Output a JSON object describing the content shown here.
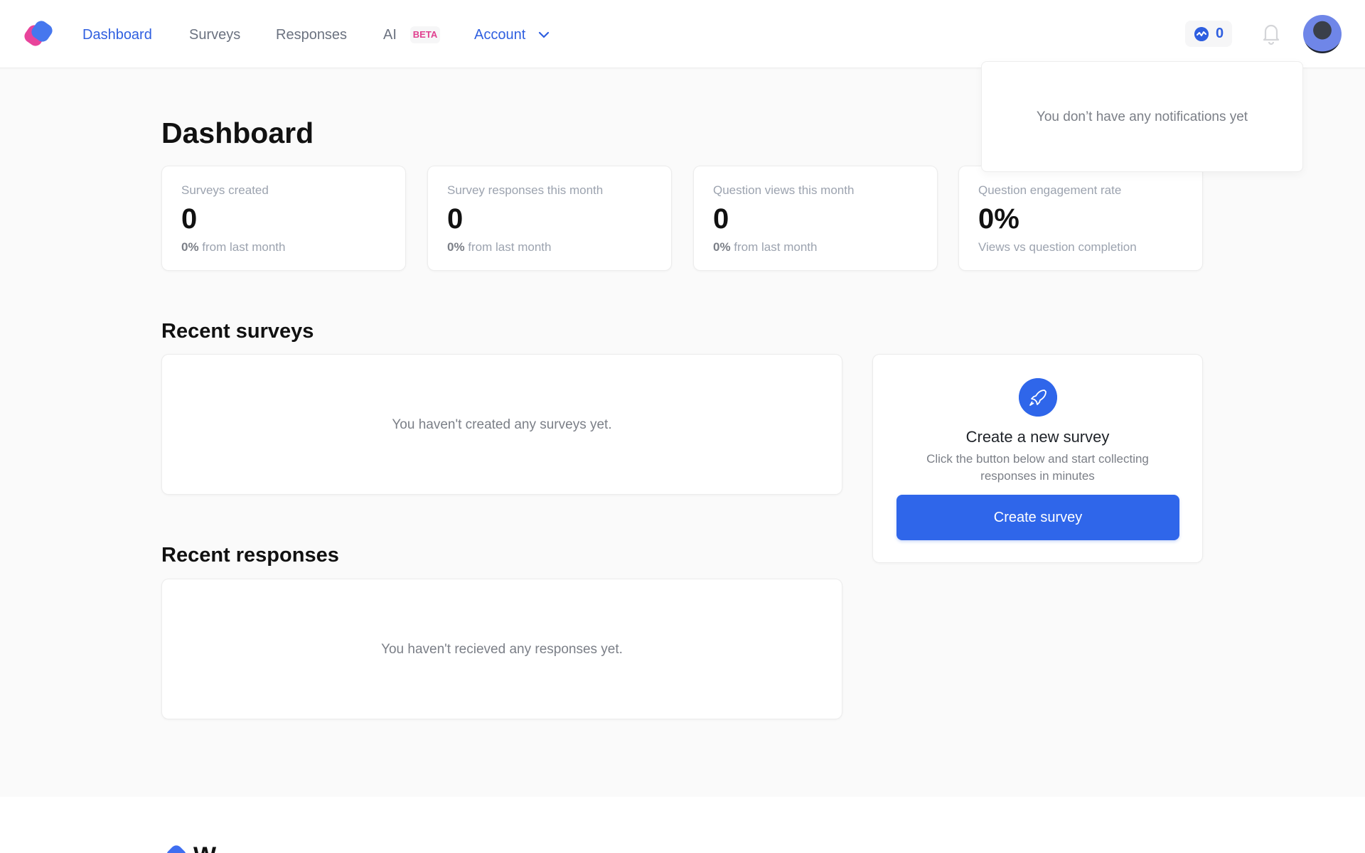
{
  "header": {
    "nav": [
      {
        "label": "Dashboard",
        "active": true
      },
      {
        "label": "Surveys"
      },
      {
        "label": "Responses"
      },
      {
        "label": "AI"
      }
    ],
    "ai_badge": "BETA",
    "account_label": "Account",
    "activity_count": "0",
    "icons": {
      "logo": "brand-logo",
      "activity": "activity-icon",
      "bell": "bell-icon",
      "chevron": "chevron-down-icon"
    },
    "accent_color": "#2f5fe0"
  },
  "notifications": {
    "empty_text": "You don’t have any notifications yet"
  },
  "page": {
    "title": "Dashboard"
  },
  "stats": [
    {
      "label": "Surveys created",
      "value": "0",
      "change": "0%",
      "change_suffix": " from last month"
    },
    {
      "label": "Survey responses this month",
      "value": "0",
      "change": "0%",
      "change_suffix": " from last month"
    },
    {
      "label": "Question views this month",
      "value": "0",
      "change": "0%",
      "change_suffix": " from last month"
    },
    {
      "label": "Question engagement rate",
      "value": "0%",
      "subtitle": "Views vs question completion"
    }
  ],
  "recent_surveys": {
    "title": "Recent surveys",
    "empty_text": "You haven't created any surveys yet."
  },
  "recent_responses": {
    "title": "Recent responses",
    "empty_text": "You haven't recieved any responses yet."
  },
  "create_card": {
    "title": "Create a new survey",
    "description": "Click the button below and start collecting responses in minutes",
    "button": "Create survey",
    "icon": "rocket-icon"
  },
  "footer": {
    "brand_partial": "W"
  }
}
